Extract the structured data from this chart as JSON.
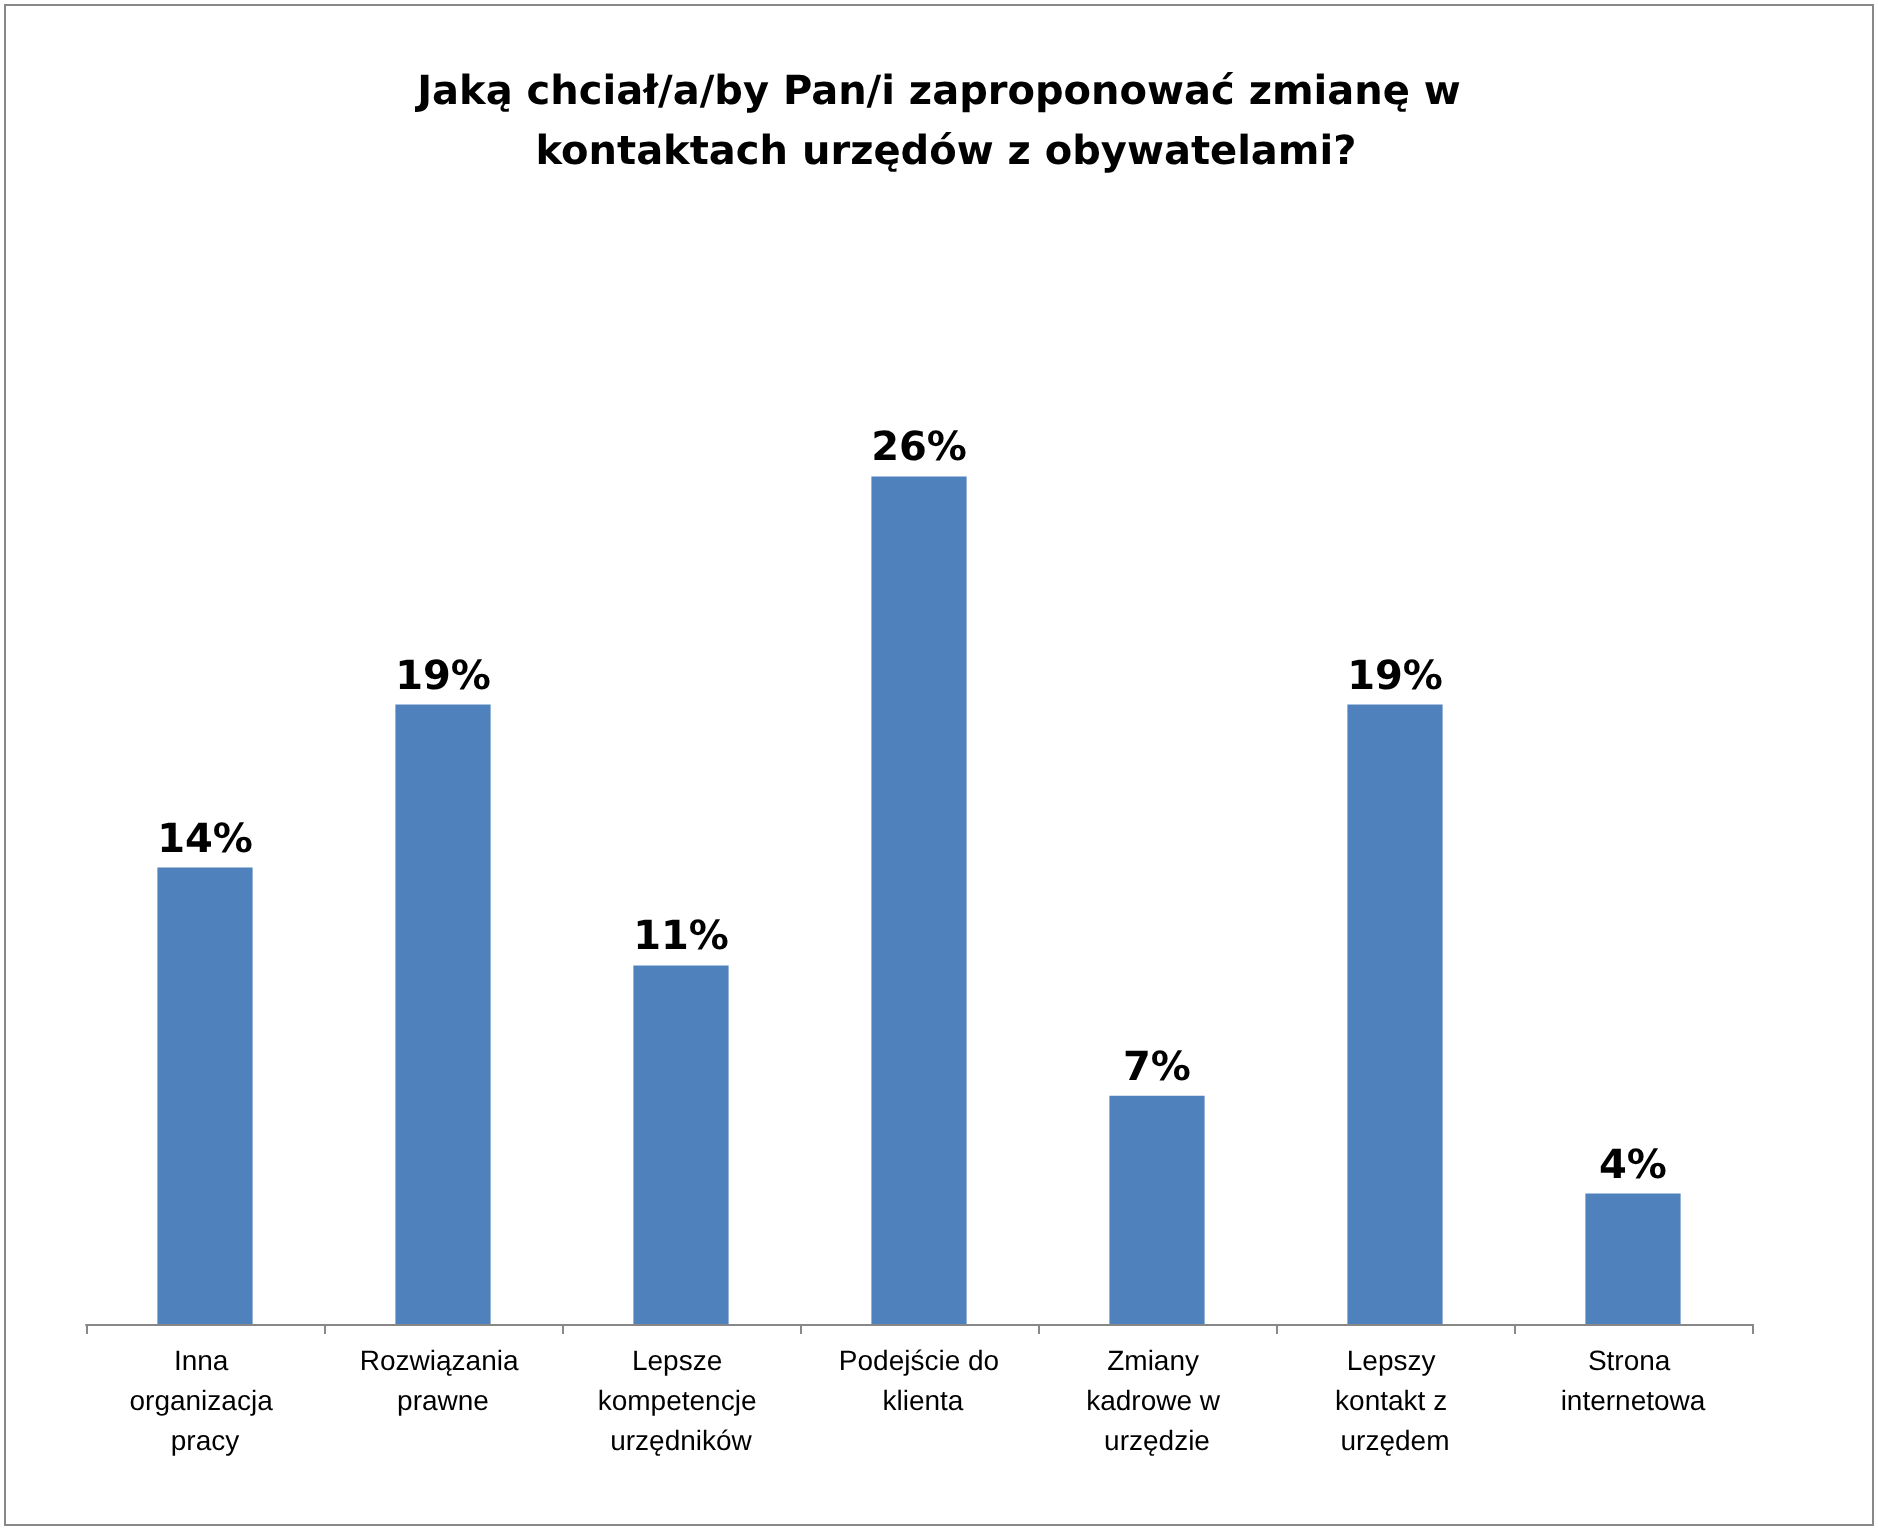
{
  "chart_data": {
    "type": "bar",
    "title": "Jaką chciał/a/by Pan/i zaproponować zmianę w kontaktach urzędów z obywatelami?",
    "categories": [
      "Inna organizacja pracy",
      "Rozwiązania prawne",
      "Lepsze kompetencje urzędników",
      "Podejście do klienta",
      "Zmiany kadrowe w urzędzie",
      "Lepszy kontakt z urzędem",
      "Strona internetowa"
    ],
    "values": [
      14,
      19,
      11,
      26,
      7,
      19,
      4
    ],
    "value_labels": [
      "14%",
      "19%",
      "11%",
      "26%",
      "7%",
      "19%",
      "4%"
    ],
    "color": "#4f81bd"
  }
}
